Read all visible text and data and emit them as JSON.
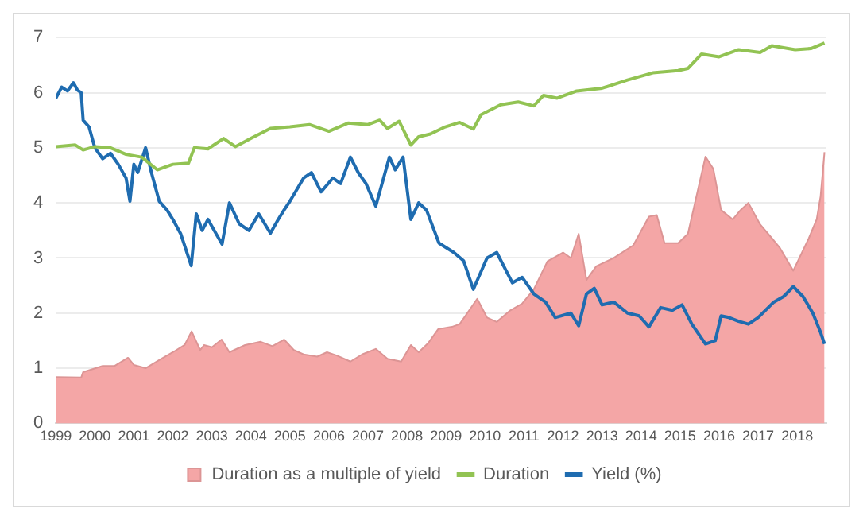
{
  "chart_data": {
    "type": "line",
    "xlim": [
      1999,
      2018.75
    ],
    "xticks": [
      1999,
      2000,
      2001,
      2002,
      2003,
      2004,
      2005,
      2006,
      2007,
      2008,
      2009,
      2010,
      2011,
      2012,
      2013,
      2014,
      2015,
      2016,
      2017,
      2018
    ],
    "ylim": [
      0,
      7
    ],
    "yticks": [
      0,
      1,
      2,
      3,
      4,
      5,
      6,
      7
    ],
    "grid": "y",
    "legend": "bottom",
    "marker": "none",
    "line_style": "solid",
    "series": [
      {
        "name": "Duration as a multiple of yield",
        "type": "area",
        "color": "#f4a6a6",
        "x": [
          1999,
          1999.65,
          1999.7,
          2000.2,
          2000.5,
          2000.85,
          2001,
          2001.3,
          2001.7,
          2002,
          2002.3,
          2002.48,
          2002.7,
          2002.8,
          2003,
          2003.25,
          2003.45,
          2003.85,
          2004.25,
          2004.55,
          2004.85,
          2005.1,
          2005.35,
          2005.7,
          2005.95,
          2006.2,
          2006.55,
          2006.85,
          2007.2,
          2007.5,
          2007.85,
          2008.1,
          2008.3,
          2008.55,
          2008.8,
          2009.15,
          2009.35,
          2009.8,
          2010.05,
          2010.3,
          2010.65,
          2010.95,
          2011.25,
          2011.6,
          2012,
          2012.2,
          2012.4,
          2012.6,
          2012.85,
          2013.3,
          2013.8,
          2014.2,
          2014.4,
          2014.6,
          2014.95,
          2015.2,
          2015.65,
          2015.85,
          2016.05,
          2016.35,
          2016.55,
          2016.75,
          2017.05,
          2017.35,
          2017.55,
          2017.9,
          2018.3,
          2018.5,
          2018.6,
          2018.7
        ],
        "values": [
          0.84,
          0.83,
          0.93,
          1.04,
          1.04,
          1.19,
          1.06,
          1.0,
          1.17,
          1.29,
          1.42,
          1.67,
          1.33,
          1.42,
          1.38,
          1.52,
          1.29,
          1.42,
          1.48,
          1.4,
          1.52,
          1.33,
          1.25,
          1.21,
          1.29,
          1.23,
          1.12,
          1.25,
          1.35,
          1.17,
          1.12,
          1.42,
          1.29,
          1.46,
          1.71,
          1.75,
          1.8,
          2.26,
          1.92,
          1.84,
          2.05,
          2.17,
          2.43,
          2.94,
          3.1,
          3.0,
          3.44,
          2.6,
          2.85,
          3.0,
          3.23,
          3.75,
          3.78,
          3.27,
          3.27,
          3.44,
          4.84,
          4.62,
          3.87,
          3.7,
          3.87,
          4.0,
          3.61,
          3.36,
          3.19,
          2.77,
          3.36,
          3.7,
          4.12,
          4.92
        ]
      },
      {
        "name": "Duration",
        "color": "#92c353",
        "x": [
          1999,
          1999.5,
          1999.7,
          2000,
          2000.4,
          2000.8,
          2001.2,
          2001.6,
          2002,
          2002.4,
          2002.55,
          2002.9,
          2003.3,
          2003.6,
          2004,
          2004.5,
          2005,
          2005.5,
          2006,
          2006.5,
          2007,
          2007.3,
          2007.5,
          2007.8,
          2008.1,
          2008.3,
          2008.6,
          2008.95,
          2009.35,
          2009.7,
          2009.9,
          2010.4,
          2010.85,
          2011.25,
          2011.5,
          2011.85,
          2012.35,
          2013,
          2013.65,
          2014.3,
          2014.95,
          2015.2,
          2015.55,
          2016,
          2016.5,
          2017.05,
          2017.35,
          2017.95,
          2018.35,
          2018.7
        ],
        "values": [
          5.02,
          5.05,
          4.96,
          5.02,
          5.0,
          4.88,
          4.83,
          4.6,
          4.7,
          4.72,
          5.0,
          4.98,
          5.17,
          5.02,
          5.17,
          5.35,
          5.38,
          5.42,
          5.3,
          5.45,
          5.42,
          5.5,
          5.35,
          5.48,
          5.05,
          5.2,
          5.25,
          5.37,
          5.46,
          5.34,
          5.6,
          5.78,
          5.83,
          5.76,
          5.95,
          5.9,
          6.03,
          6.08,
          6.23,
          6.36,
          6.4,
          6.44,
          6.7,
          6.65,
          6.78,
          6.73,
          6.85,
          6.78,
          6.8,
          6.9
        ]
      },
      {
        "name": "Yield (%)",
        "color": "#1f6cb0",
        "x": [
          1999,
          1999.15,
          1999.3,
          1999.45,
          1999.55,
          1999.65,
          1999.7,
          1999.85,
          2000,
          2000.2,
          2000.4,
          2000.6,
          2000.8,
          2000.9,
          2001,
          2001.1,
          2001.3,
          2001.45,
          2001.65,
          2001.85,
          2002,
          2002.2,
          2002.47,
          2002.6,
          2002.75,
          2002.9,
          2003.26,
          2003.45,
          2003.7,
          2003.95,
          2004.2,
          2004.5,
          2004.7,
          2004.85,
          2005,
          2005.35,
          2005.55,
          2005.8,
          2006.1,
          2006.3,
          2006.55,
          2006.75,
          2006.95,
          2007.2,
          2007.4,
          2007.55,
          2007.7,
          2007.9,
          2008.1,
          2008.3,
          2008.5,
          2008.82,
          2009.2,
          2009.45,
          2009.7,
          2010.05,
          2010.3,
          2010.7,
          2010.95,
          2011.25,
          2011.55,
          2011.8,
          2012.2,
          2012.4,
          2012.6,
          2012.8,
          2013,
          2013.3,
          2013.65,
          2013.95,
          2014.2,
          2014.5,
          2014.8,
          2015.05,
          2015.3,
          2015.65,
          2015.9,
          2016.05,
          2016.25,
          2016.5,
          2016.75,
          2017,
          2017.4,
          2017.65,
          2017.9,
          2018.15,
          2018.4,
          2018.6,
          2018.7
        ],
        "values": [
          5.9,
          6.1,
          6.03,
          6.18,
          6.05,
          6.0,
          5.5,
          5.38,
          5.0,
          4.8,
          4.9,
          4.7,
          4.45,
          4.03,
          4.7,
          4.55,
          5.0,
          4.55,
          4.03,
          3.87,
          3.7,
          3.44,
          2.86,
          3.8,
          3.5,
          3.7,
          3.25,
          4.0,
          3.62,
          3.5,
          3.8,
          3.45,
          3.7,
          3.87,
          4.03,
          4.45,
          4.55,
          4.2,
          4.45,
          4.35,
          4.83,
          4.55,
          4.35,
          3.94,
          4.45,
          4.83,
          4.6,
          4.83,
          3.7,
          4.0,
          3.87,
          3.27,
          3.1,
          2.95,
          2.43,
          3.0,
          3.1,
          2.55,
          2.65,
          2.35,
          2.2,
          1.92,
          2.0,
          1.77,
          2.35,
          2.45,
          2.15,
          2.2,
          2.0,
          1.95,
          1.75,
          2.1,
          2.05,
          2.15,
          1.8,
          1.44,
          1.5,
          1.95,
          1.92,
          1.85,
          1.8,
          1.92,
          2.2,
          2.3,
          2.48,
          2.3,
          2.0,
          1.65,
          1.44
        ]
      }
    ]
  }
}
